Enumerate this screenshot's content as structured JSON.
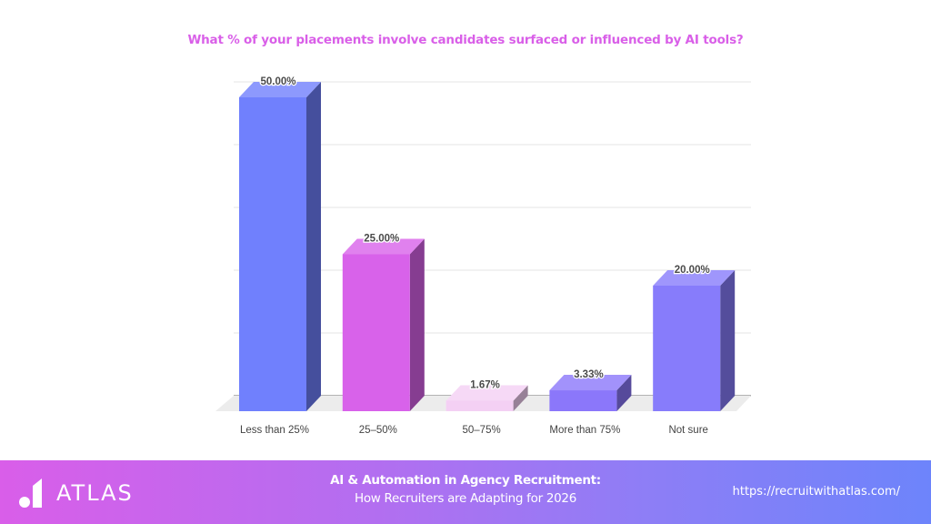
{
  "chart_data": {
    "type": "bar",
    "title": "What % of your placements involve candidates surfaced or influenced by AI tools?",
    "categories": [
      "Less than 25%",
      "25–50%",
      "50–75%",
      "More than 75%",
      "Not sure"
    ],
    "values": [
      50.0,
      25.0,
      1.67,
      3.33,
      20.0
    ],
    "value_labels": [
      "50.00%",
      "25.00%",
      "1.67%",
      "3.33%",
      "20.00%"
    ],
    "colors": [
      "#7080fd",
      "#d862ea",
      "#f4d0f4",
      "#8b77fa",
      "#877cfb"
    ],
    "xlabel": "",
    "ylabel": "",
    "ylim": [
      0,
      50
    ],
    "grid": true,
    "legend": "none",
    "style": "3d"
  },
  "footer": {
    "brand": "ATLAS",
    "headline": "AI & Automation in Agency Recruitment:",
    "subheadline": "How Recruiters are Adapting for 2026",
    "url": "https://recruitwithatlas.com/",
    "gradient_start": "#d95ee9",
    "gradient_end": "#6d84fb"
  }
}
